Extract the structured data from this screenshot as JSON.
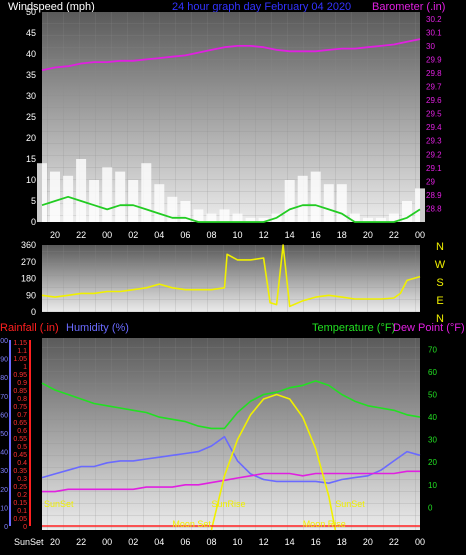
{
  "header": {
    "left_label": "Windspeed (mph)",
    "center_label": "24 hour graph day   February 04 2020",
    "right_label": "Barometer (.in)"
  },
  "colors": {
    "background": "#000000",
    "panel_top": "#5a5a5a",
    "panel_bottom": "#ececec",
    "wind_gust": "#ffffff",
    "wind_avg": "#22cc22",
    "barometer": "#e020e0",
    "wind_dir": "#f0f000",
    "rainfall": "#ff2020",
    "humidity": "#6a6aff",
    "temperature": "#22e022",
    "dewpoint": "#e020e0",
    "solar": "#f0f000",
    "axis_text": "#ffffff",
    "left_axis_text": "#ff3030",
    "right_axis_text": "#22e022"
  },
  "x_ticks": [
    "20",
    "22",
    "00",
    "02",
    "04",
    "06",
    "08",
    "10",
    "12",
    "14",
    "16",
    "18",
    "20",
    "22",
    "00"
  ],
  "chart_data": [
    {
      "type": "line",
      "title": "",
      "xlabel": "",
      "ylabel": "Windspeed (mph)",
      "y2label": "Barometer (.in)",
      "x_range_hours": [
        -5,
        24
      ],
      "ylim": [
        0,
        50
      ],
      "y_ticks": [
        "0",
        "5",
        "10",
        "15",
        "20",
        "25",
        "30",
        "35",
        "40",
        "45",
        "50"
      ],
      "y2lim": [
        28.7,
        30.25
      ],
      "y2_ticks": [
        "28.8",
        "28.9",
        "29",
        "29.1",
        "29.2",
        "29.3",
        "29.4",
        "29.5",
        "29.6",
        "29.7",
        "29.8",
        "29.9",
        "30",
        "30.1",
        "30.2"
      ],
      "series": [
        {
          "key": "gust",
          "x": [
            -5,
            -4,
            -3,
            -2,
            -1,
            0,
            1,
            2,
            3,
            4,
            5,
            6,
            7,
            8,
            9,
            10,
            11,
            12,
            13,
            14,
            15,
            16,
            17,
            18,
            19,
            20,
            21,
            22,
            23,
            24
          ],
          "y": [
            14,
            12,
            11,
            15,
            10,
            13,
            12,
            10,
            14,
            9,
            6,
            5,
            3,
            2,
            3,
            2,
            1,
            1,
            2,
            10,
            11,
            12,
            9,
            9,
            2,
            1,
            1,
            2,
            5,
            8
          ]
        },
        {
          "key": "average",
          "x": [
            -5,
            -4,
            -3,
            -2,
            -1,
            0,
            1,
            2,
            3,
            4,
            5,
            6,
            7,
            8,
            9,
            10,
            11,
            12,
            13,
            14,
            15,
            16,
            17,
            18,
            19,
            20,
            21,
            22,
            23,
            24
          ],
          "y": [
            4,
            5,
            6,
            5,
            4,
            3,
            4,
            4,
            3,
            2,
            1,
            1,
            0,
            0,
            0,
            0,
            0,
            0,
            1,
            3,
            4,
            4,
            3,
            2,
            0,
            0,
            0,
            0,
            1,
            3
          ]
        },
        {
          "key": "barometer",
          "x": [
            -5,
            -4,
            -3,
            -2,
            -1,
            0,
            1,
            2,
            3,
            4,
            5,
            6,
            7,
            8,
            9,
            10,
            11,
            12,
            13,
            14,
            15,
            16,
            17,
            18,
            19,
            20,
            21,
            22,
            23,
            24
          ],
          "y": [
            29.82,
            29.84,
            29.85,
            29.87,
            29.88,
            29.88,
            29.89,
            29.89,
            29.9,
            29.91,
            29.92,
            29.93,
            29.95,
            29.97,
            29.99,
            30.0,
            30.0,
            29.99,
            29.97,
            29.96,
            29.96,
            29.96,
            29.97,
            29.98,
            29.98,
            29.99,
            30.0,
            30.01,
            30.03,
            30.05
          ]
        }
      ]
    },
    {
      "type": "line",
      "title": "",
      "ylabel": "Wind direction",
      "x_range_hours": [
        -5,
        24
      ],
      "ylim": [
        0,
        360
      ],
      "y_ticks": [
        "0",
        "90",
        "180",
        "270",
        "360"
      ],
      "compass_labels": [
        "N",
        "W",
        "S",
        "E",
        "N"
      ],
      "series": [
        {
          "key": "direction",
          "x": [
            -5,
            -4,
            -3,
            -2,
            -1,
            0,
            1,
            2,
            3,
            4,
            5,
            6,
            7,
            8,
            9,
            9.2,
            10,
            11,
            12,
            12.5,
            13,
            13.5,
            14,
            15,
            16,
            17,
            18,
            19,
            20,
            21,
            22,
            22.5,
            23,
            24
          ],
          "y": [
            90,
            80,
            90,
            100,
            100,
            110,
            110,
            120,
            130,
            150,
            130,
            120,
            120,
            120,
            130,
            310,
            280,
            280,
            290,
            50,
            40,
            360,
            30,
            60,
            80,
            90,
            80,
            70,
            70,
            70,
            75,
            100,
            170,
            190
          ]
        }
      ]
    },
    {
      "type": "line",
      "title": "",
      "xlabel": "",
      "ylabel": "Rainfall (.in)",
      "y2label": "Humidity (%)",
      "y3label": "Temperature (°F)",
      "y4label": "Dew Point (°F)",
      "x_range_hours": [
        -5,
        24
      ],
      "rain_ticks": [
        "0",
        "0.05",
        "0.1",
        "0.15",
        "0.2",
        "0.25",
        "0.3",
        "0.35",
        "0.4",
        "0.45",
        "0.5",
        "0.55",
        "0.6",
        "0.65",
        "0.7",
        "0.75",
        "0.8",
        "0.85",
        "0.9",
        "0.95",
        "1",
        "1.05",
        "1.1",
        "1.15"
      ],
      "humidity_ticks": [
        "0",
        "10",
        "20",
        "30",
        "40",
        "50",
        "60",
        "70",
        "80",
        "90",
        "100"
      ],
      "temp_ticks": [
        "0",
        "10",
        "20",
        "30",
        "40",
        "50",
        "60",
        "70"
      ],
      "temp_lim": [
        -10,
        75
      ],
      "series": [
        {
          "key": "humidity",
          "x": [
            -5,
            -4,
            -3,
            -2,
            -1,
            0,
            1,
            2,
            3,
            4,
            5,
            6,
            7,
            8,
            9,
            10,
            11,
            12,
            13,
            14,
            15,
            16,
            17,
            18,
            19,
            20,
            21,
            22,
            23,
            24
          ],
          "y": [
            26,
            28,
            30,
            32,
            32,
            34,
            35,
            35,
            36,
            37,
            38,
            39,
            40,
            43,
            48,
            35,
            28,
            25,
            24,
            24,
            24,
            24,
            23,
            25,
            26,
            27,
            30,
            35,
            40,
            38
          ]
        },
        {
          "key": "temperature",
          "x": [
            -5,
            -4,
            -3,
            -2,
            -1,
            0,
            1,
            2,
            3,
            4,
            5,
            6,
            7,
            8,
            9,
            10,
            11,
            12,
            13,
            14,
            15,
            16,
            17,
            18,
            19,
            20,
            21,
            22,
            23,
            24
          ],
          "y": [
            55,
            52,
            50,
            48,
            46,
            45,
            44,
            43,
            42,
            40,
            39,
            38,
            36,
            35,
            35,
            42,
            47,
            50,
            51,
            53,
            54,
            56,
            54,
            50,
            47,
            45,
            44,
            43,
            41,
            40
          ]
        },
        {
          "key": "dewpoint",
          "x": [
            -5,
            -4,
            -3,
            -2,
            -1,
            0,
            1,
            2,
            3,
            4,
            5,
            6,
            7,
            8,
            9,
            10,
            11,
            12,
            13,
            14,
            15,
            16,
            17,
            18,
            19,
            20,
            21,
            22,
            23,
            24
          ],
          "y": [
            7,
            7,
            8,
            8,
            8,
            8,
            8,
            8,
            9,
            9,
            9,
            10,
            10,
            11,
            12,
            13,
            14,
            15,
            15,
            15,
            14,
            15,
            15,
            15,
            15,
            15,
            15,
            15,
            16,
            16
          ]
        },
        {
          "key": "solar",
          "x": [
            8,
            9,
            10,
            11,
            12,
            13,
            14,
            15,
            16,
            17,
            17.5
          ],
          "y": [
            -10,
            14,
            30,
            41,
            48,
            50,
            48,
            40,
            26,
            5,
            -10
          ]
        },
        {
          "key": "rainfall",
          "x": [
            -5,
            24
          ],
          "y": [
            0,
            0
          ]
        }
      ],
      "annotations": [
        {
          "label": "SunSet",
          "x": -5
        },
        {
          "label": "SunRise",
          "x": 8
        },
        {
          "label": "SunSet",
          "x": 17.5
        },
        {
          "label": "Moon Set",
          "x": 5
        },
        {
          "label": "Moon Rise",
          "x": 15
        }
      ],
      "bottom_tick_prefix": "SunSet"
    }
  ]
}
